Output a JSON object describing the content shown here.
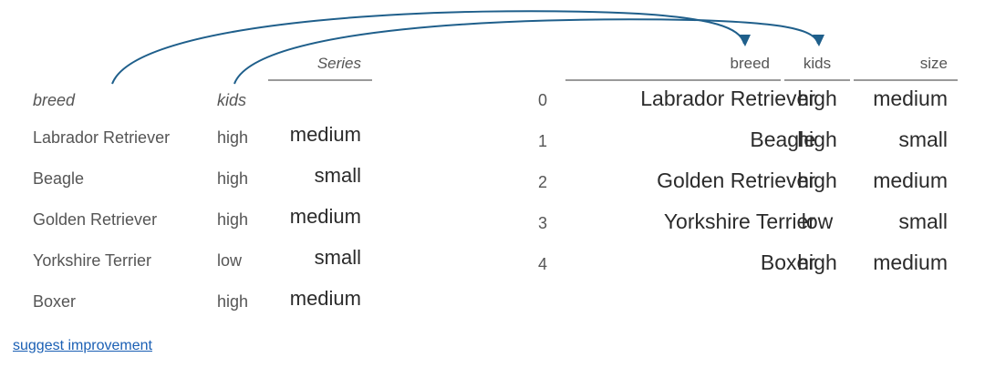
{
  "left_series": {
    "name": "Series",
    "index_names": [
      "breed",
      "kids"
    ],
    "rows": [
      {
        "breed": "Labrador Retriever",
        "kids": "high",
        "value": "medium"
      },
      {
        "breed": "Beagle",
        "kids": "high",
        "value": "small"
      },
      {
        "breed": "Golden Retriever",
        "kids": "high",
        "value": "medium"
      },
      {
        "breed": "Yorkshire Terrier",
        "kids": "low",
        "value": "small"
      },
      {
        "breed": "Boxer",
        "kids": "high",
        "value": "medium"
      }
    ]
  },
  "right_frame": {
    "columns": [
      "breed",
      "kids",
      "size"
    ],
    "rows": [
      {
        "index": "0",
        "breed": "Labrador Retriever",
        "kids": "high",
        "size": "medium"
      },
      {
        "index": "1",
        "breed": "Beagle",
        "kids": "high",
        "size": "small"
      },
      {
        "index": "2",
        "breed": "Golden Retriever",
        "kids": "high",
        "size": "medium"
      },
      {
        "index": "3",
        "breed": "Yorkshire Terrier",
        "kids": "low",
        "size": "small"
      },
      {
        "index": "4",
        "breed": "Boxer",
        "kids": "high",
        "size": "medium"
      }
    ]
  },
  "link": {
    "suggest": "suggest improvement"
  },
  "colors": {
    "arrow": "#1f5f8b"
  }
}
